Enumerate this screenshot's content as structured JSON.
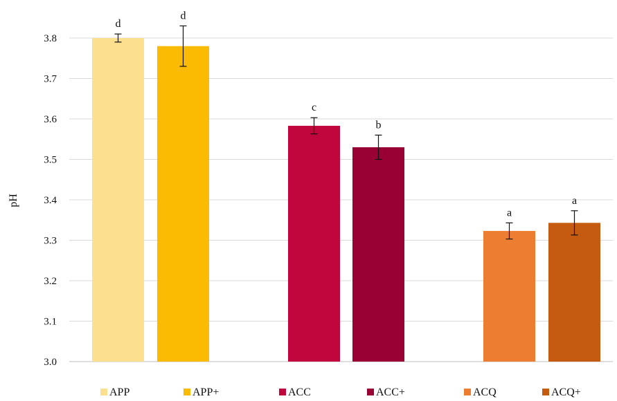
{
  "chart_data": {
    "type": "bar",
    "ylabel": "pH",
    "ylim": [
      3.0,
      3.8
    ],
    "y_ticks": [
      "3.0",
      "3.1",
      "3.2",
      "3.3",
      "3.4",
      "3.5",
      "3.6",
      "3.7",
      "3.8"
    ],
    "grid": "horizontal",
    "legend_position": "bottom",
    "series": [
      {
        "name": "APP",
        "color": "#FCE08F",
        "value": 3.8,
        "error": 0.01,
        "label": "d"
      },
      {
        "name": "APP+",
        "color": "#FBBB02",
        "value": 3.78,
        "error": 0.05,
        "label": "d"
      },
      {
        "name": "ACC",
        "color": "#C0063C",
        "value": 3.583,
        "error": 0.02,
        "label": "c"
      },
      {
        "name": "ACC+",
        "color": "#990033",
        "value": 3.53,
        "error": 0.03,
        "label": "b"
      },
      {
        "name": "ACQ",
        "color": "#ED7D31",
        "value": 3.323,
        "error": 0.02,
        "label": "a"
      },
      {
        "name": "ACQ+",
        "color": "#C55A11",
        "value": 3.343,
        "error": 0.03,
        "label": "a"
      }
    ]
  }
}
